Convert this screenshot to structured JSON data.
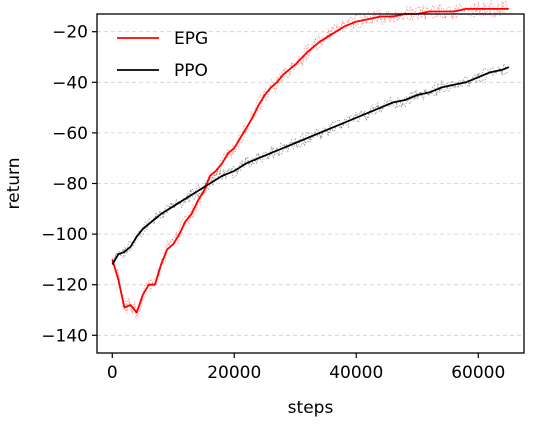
{
  "chart_data": {
    "type": "line",
    "xlabel": "steps",
    "ylabel": "return",
    "xlim": [
      -2500,
      67500
    ],
    "ylim": [
      -147,
      -13
    ],
    "xticks": [
      0,
      20000,
      40000,
      60000
    ],
    "yticks": [
      -20,
      -40,
      -60,
      -80,
      -100,
      -120,
      -140
    ],
    "xtick_labels": [
      "0",
      "20000",
      "40000",
      "60000"
    ],
    "ytick_labels": [
      "−20",
      "−40",
      "−60",
      "−80",
      "−100",
      "−120",
      "−140"
    ],
    "grid": "horizontal dashed",
    "legend_position": "top-left",
    "raw_points_style": "dotted",
    "series": [
      {
        "name": "EPG",
        "color": "#ff0000",
        "x": [
          0,
          1000,
          2000,
          3000,
          4000,
          5000,
          6000,
          7000,
          8000,
          9000,
          10000,
          11000,
          12000,
          13000,
          14000,
          15000,
          16000,
          17000,
          18000,
          19000,
          20000,
          21000,
          22000,
          23000,
          24000,
          25000,
          26000,
          27000,
          28000,
          29000,
          30000,
          32000,
          34000,
          36000,
          38000,
          40000,
          42000,
          44000,
          46000,
          48000,
          50000,
          52000,
          54000,
          56000,
          58000,
          60000,
          62000,
          64000,
          65000
        ],
        "values": [
          -110,
          -118,
          -129,
          -128,
          -131,
          -124,
          -120,
          -120,
          -112,
          -106,
          -104,
          -100,
          -95,
          -92,
          -87,
          -83,
          -77,
          -75,
          -72,
          -68,
          -66,
          -62,
          -58,
          -54,
          -49,
          -45,
          -42,
          -40,
          -37,
          -35,
          -33,
          -28,
          -24,
          -21,
          -18,
          -16,
          -15,
          -14,
          -14,
          -13,
          -13,
          -12,
          -12,
          -12,
          -11,
          -11,
          -11,
          -11,
          -11
        ]
      },
      {
        "name": "PPO",
        "color": "#000000",
        "x": [
          0,
          1000,
          2000,
          3000,
          4000,
          5000,
          6000,
          8000,
          10000,
          12000,
          14000,
          16000,
          18000,
          20000,
          22000,
          24000,
          26000,
          28000,
          30000,
          32000,
          34000,
          36000,
          38000,
          40000,
          42000,
          44000,
          46000,
          48000,
          50000,
          52000,
          54000,
          56000,
          58000,
          60000,
          62000,
          64000,
          65000
        ],
        "values": [
          -112,
          -108,
          -107,
          -105,
          -101,
          -98,
          -96,
          -92,
          -89,
          -86,
          -83,
          -80,
          -77,
          -75,
          -72,
          -70,
          -68,
          -66,
          -64,
          -62,
          -60,
          -58,
          -56,
          -54,
          -52,
          -50,
          -48,
          -47,
          -45,
          -44,
          -42,
          -41,
          -40,
          -38,
          -36,
          -35,
          -34
        ]
      }
    ]
  }
}
